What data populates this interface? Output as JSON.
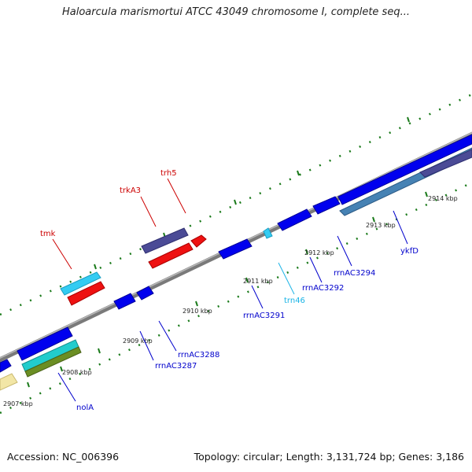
{
  "title": "Haloarcula marismortui ATCC 43049 chromosome I, complete seq...",
  "footer": {
    "accession": "Accession: NC_006396",
    "summary": "Topology: circular; Length: 3,131,724 bp; Genes: 3,186"
  },
  "colors": {
    "backbone": "#8c8c8c",
    "ticks": "#1a7a1a",
    "label_red": "#cc0000",
    "label_blue": "#0000cc",
    "label_cyan": "#1ab4e6"
  },
  "tick_labels": [
    "2907 kbp",
    "2908 kbp",
    "2909 kbp",
    "2910 kbp",
    "2911 kbp",
    "2912 kbp",
    "2913 kbp",
    "2914 kbp"
  ],
  "features": [
    {
      "label": "tmk",
      "color": "#cc0000"
    },
    {
      "label": "trkA3",
      "color": "#cc0000"
    },
    {
      "label": "trh5",
      "color": "#cc0000"
    },
    {
      "label": "nolA",
      "color": "#0000cc"
    },
    {
      "label": "rrnAC3287",
      "color": "#0000cc"
    },
    {
      "label": "rrnAC3288",
      "color": "#0000cc"
    },
    {
      "label": "rrnAC3291",
      "color": "#0000cc"
    },
    {
      "label": "trn46",
      "color": "#1ab4e6"
    },
    {
      "label": "rrnAC3292",
      "color": "#0000cc"
    },
    {
      "label": "rrnAC3294",
      "color": "#0000cc"
    },
    {
      "label": "ykfD",
      "color": "#0000cc"
    }
  ]
}
